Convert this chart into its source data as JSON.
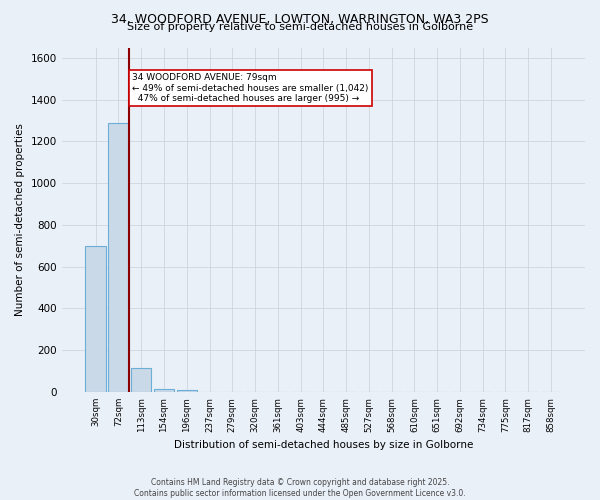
{
  "title_line1": "34, WOODFORD AVENUE, LOWTON, WARRINGTON, WA3 2PS",
  "title_line2": "Size of property relative to semi-detached houses in Golborne",
  "xlabel": "Distribution of semi-detached houses by size in Golborne",
  "ylabel": "Number of semi-detached properties",
  "categories": [
    "30sqm",
    "72sqm",
    "113sqm",
    "154sqm",
    "196sqm",
    "237sqm",
    "279sqm",
    "320sqm",
    "361sqm",
    "403sqm",
    "444sqm",
    "485sqm",
    "527sqm",
    "568sqm",
    "610sqm",
    "651sqm",
    "692sqm",
    "734sqm",
    "775sqm",
    "817sqm",
    "858sqm"
  ],
  "values": [
    700,
    1290,
    115,
    15,
    8,
    0,
    0,
    0,
    0,
    0,
    0,
    0,
    0,
    0,
    0,
    0,
    0,
    0,
    0,
    0,
    0
  ],
  "bar_color": "#c9d9e8",
  "bar_edgecolor": "#6baed6",
  "subject_line_color": "#8b0000",
  "annotation_text": "34 WOODFORD AVENUE: 79sqm\n← 49% of semi-detached houses are smaller (1,042)\n  47% of semi-detached houses are larger (995) →",
  "annotation_box_color": "#ffffff",
  "annotation_box_edgecolor": "#cc0000",
  "ylim": [
    0,
    1650
  ],
  "background_color": "#eaf0f8",
  "grid_color": "#c8d0da",
  "footer_line1": "Contains HM Land Registry data © Crown copyright and database right 2025.",
  "footer_line2": "Contains public sector information licensed under the Open Government Licence v3.0."
}
